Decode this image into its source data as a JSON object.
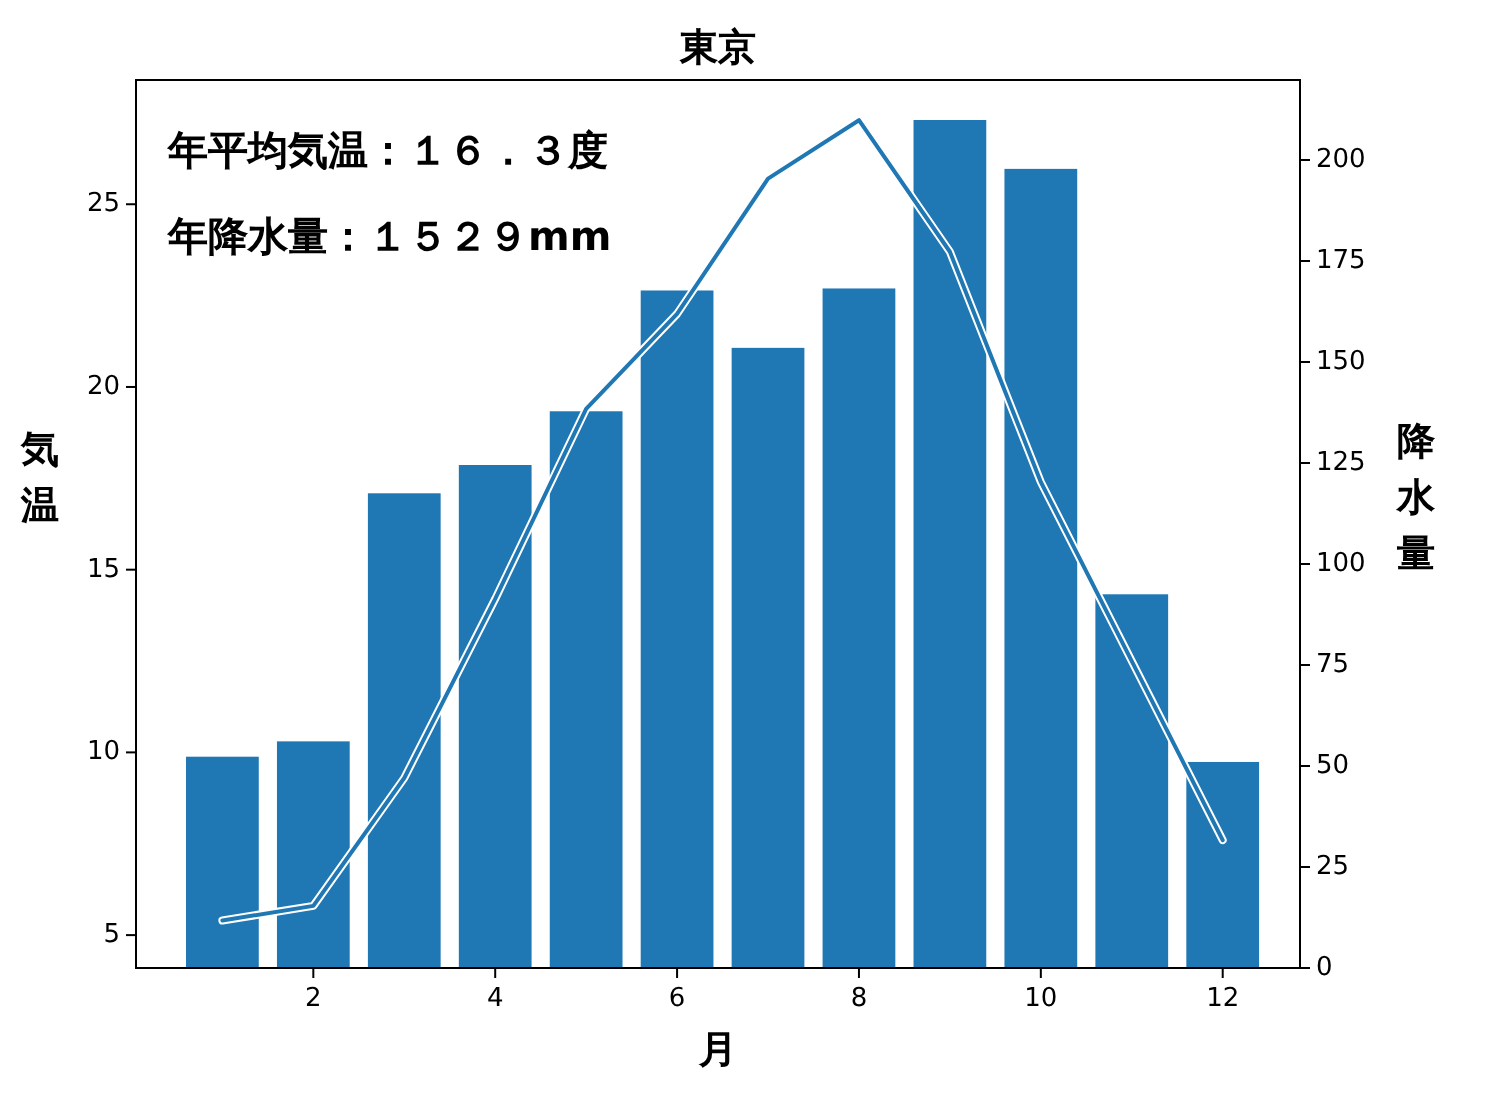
{
  "chart_data": {
    "type": "bar",
    "title": "東京",
    "xlabel": "月",
    "ylabel": "気温",
    "y2label": "降水量",
    "x": [
      1,
      2,
      3,
      4,
      5,
      6,
      7,
      8,
      9,
      10,
      11,
      12
    ],
    "series": [
      {
        "type": "line",
        "axis": "y",
        "color": "#1f77b4",
        "values": [
          5.4,
          5.8,
          9.3,
          14.2,
          19.4,
          22.0,
          25.7,
          27.3,
          23.7,
          17.4,
          12.5,
          7.6
        ]
      },
      {
        "axis": "y2",
        "color": "#1f77b4",
        "values": [
          52.3,
          56.1,
          117.5,
          124.5,
          137.8,
          167.7,
          153.5,
          168.2,
          209.9,
          197.8,
          92.5,
          51.0
        ]
      }
    ],
    "xlim": [
      0.05,
      12.85
    ],
    "xticks": [
      2,
      4,
      6,
      8,
      10,
      12
    ],
    "ylim": [
      4.1,
      28.4
    ],
    "yticks": [
      5,
      10,
      15,
      20,
      25
    ],
    "y2lim": [
      0,
      219.8
    ],
    "y2ticks": [
      0,
      25,
      50,
      75,
      100,
      125,
      150,
      175,
      200
    ],
    "annotations": [
      "年平均気温：１６．３度",
      "年降水量：１５２９mm"
    ],
    "grid": false,
    "marker": "none",
    "line_style": "solid"
  }
}
